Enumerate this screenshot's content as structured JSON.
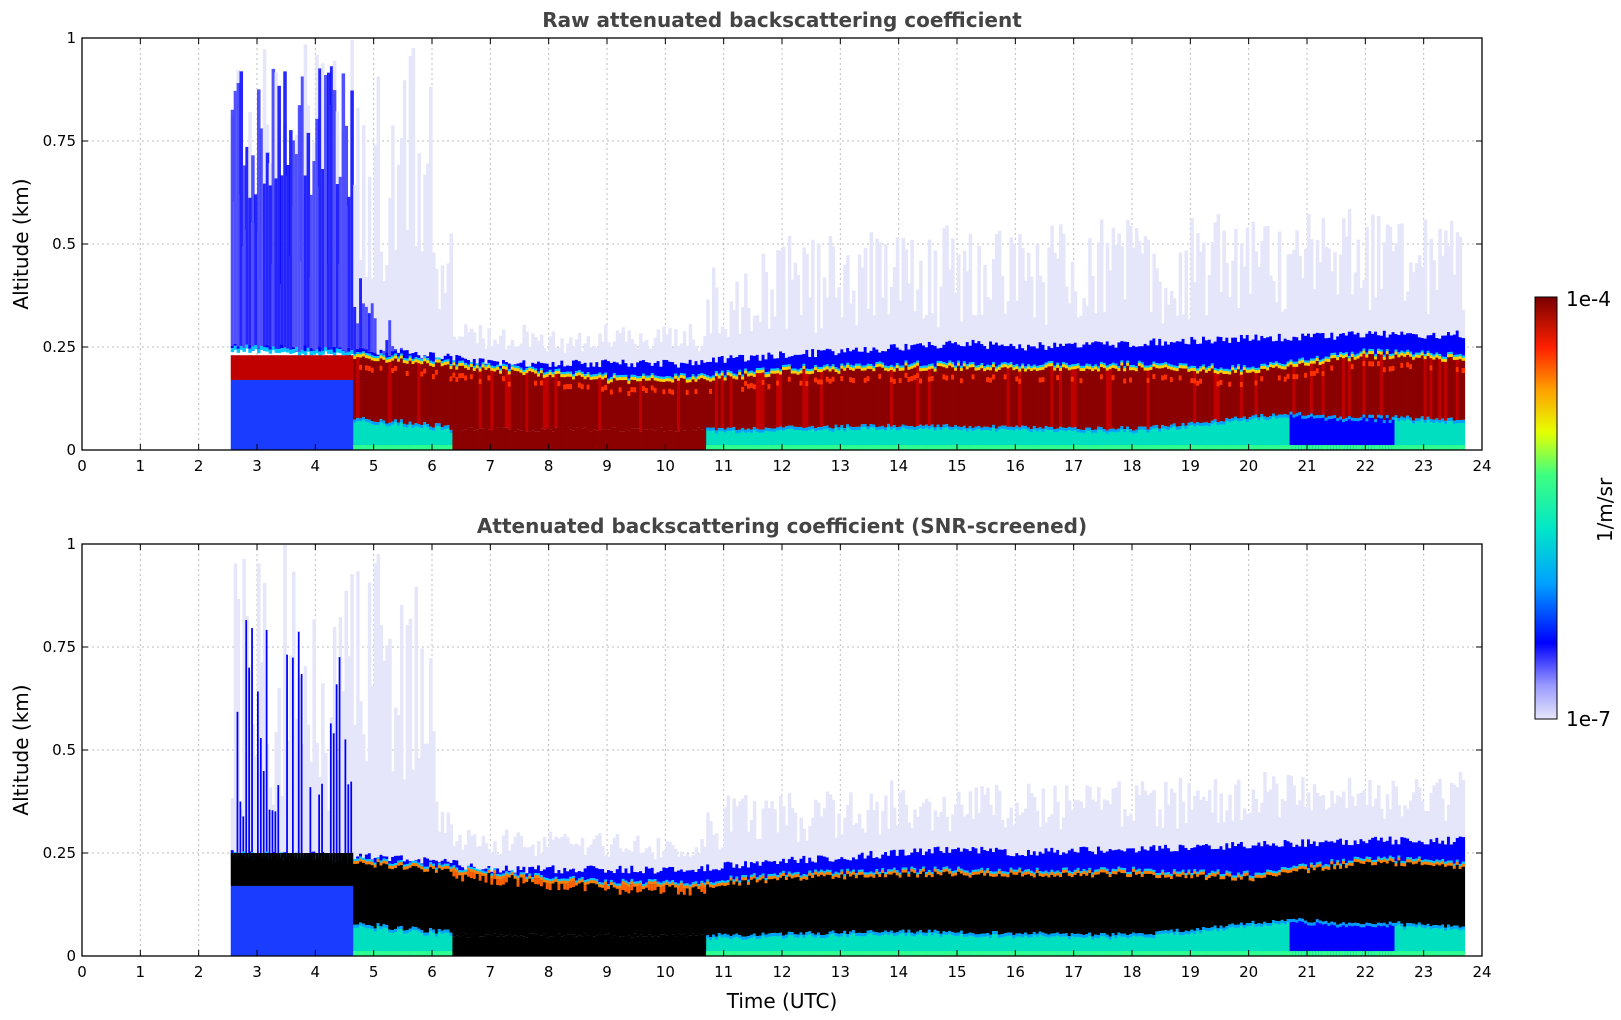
{
  "chart_data": [
    {
      "type": "heatmap",
      "title": "Raw attenuated backscattering coefficient",
      "xlabel": "",
      "ylabel": "Altitude (km)",
      "xlim": [
        0,
        24
      ],
      "ylim": [
        0,
        1
      ],
      "xticks": [
        "0",
        "1",
        "2",
        "3",
        "4",
        "5",
        "6",
        "7",
        "8",
        "9",
        "10",
        "11",
        "12",
        "13",
        "14",
        "15",
        "16",
        "17",
        "18",
        "19",
        "20",
        "21",
        "22",
        "23",
        "24"
      ],
      "yticks": [
        "0",
        "0.25",
        "0.5",
        "0.75",
        "1"
      ],
      "grid": true,
      "data_start_utc": 2.55,
      "data_end_utc": 23.7,
      "layers": [
        {
          "name": "aerosol layer core",
          "level": "high",
          "points": [
            [
              2.55,
              0.21
            ],
            [
              4.5,
              0.2
            ],
            [
              6,
              0.18
            ],
            [
              7.5,
              0.16
            ],
            [
              9,
              0.14
            ],
            [
              10.5,
              0.14
            ],
            [
              12,
              0.16
            ],
            [
              14,
              0.17
            ],
            [
              16,
              0.17
            ],
            [
              18,
              0.17
            ],
            [
              20,
              0.16
            ],
            [
              22,
              0.2
            ],
            [
              23.7,
              0.19
            ]
          ]
        },
        {
          "name": "layer top",
          "level": "medium",
          "points": [
            [
              2.55,
              0.25
            ],
            [
              5,
              0.24
            ],
            [
              6,
              0.23
            ],
            [
              7,
              0.21
            ],
            [
              9,
              0.21
            ],
            [
              10.5,
              0.21
            ],
            [
              11,
              0.22
            ],
            [
              13,
              0.24
            ],
            [
              15,
              0.26
            ],
            [
              16,
              0.25
            ],
            [
              18,
              0.26
            ],
            [
              20,
              0.27
            ],
            [
              22,
              0.28
            ],
            [
              23.7,
              0.28
            ]
          ]
        },
        {
          "name": "near-surface",
          "level": "low",
          "points": [
            [
              2.55,
              0.04
            ],
            [
              10.8,
              0.04
            ],
            [
              14,
              0.05
            ],
            [
              18,
              0.04
            ],
            [
              20.7,
              0.08
            ],
            [
              21.5,
              0.07
            ],
            [
              23.7,
              0.06
            ]
          ]
        }
      ]
    },
    {
      "type": "heatmap",
      "title": "Attenuated backscattering coefficient (SNR-screened)",
      "xlabel": "Time (UTC)",
      "ylabel": "Altitude (km)",
      "xlim": [
        0,
        24
      ],
      "ylim": [
        0,
        1
      ],
      "xticks": [
        "0",
        "1",
        "2",
        "3",
        "4",
        "5",
        "6",
        "7",
        "8",
        "9",
        "10",
        "11",
        "12",
        "13",
        "14",
        "15",
        "16",
        "17",
        "18",
        "19",
        "20",
        "21",
        "22",
        "23",
        "24"
      ],
      "yticks": [
        "0",
        "0.25",
        "0.5",
        "0.75",
        "1"
      ],
      "grid": true,
      "data_start_utc": 2.55,
      "data_end_utc": 23.7,
      "saturated_color": "#000000",
      "layers": [
        {
          "name": "saturated layer",
          "level": "saturated",
          "points": [
            [
              4.5,
              0.2
            ],
            [
              6,
              0.19
            ],
            [
              7.5,
              0.15
            ],
            [
              9,
              0.13
            ],
            [
              10.5,
              0.12
            ],
            [
              12,
              0.15
            ],
            [
              14,
              0.16
            ],
            [
              16,
              0.16
            ],
            [
              18,
              0.15
            ],
            [
              20,
              0.16
            ],
            [
              22,
              0.19
            ],
            [
              23.7,
              0.19
            ]
          ]
        }
      ]
    }
  ],
  "colorbar": {
    "label": "1/m/sr",
    "max_label": "1e-4",
    "min_label": "1e-7",
    "min_value": 1e-07,
    "max_value": 0.0001,
    "colors": [
      "#e6e6fa",
      "#0000ff",
      "#00bfff",
      "#00ffb0",
      "#ffff00",
      "#ff8000",
      "#ff0000",
      "#800000"
    ]
  }
}
